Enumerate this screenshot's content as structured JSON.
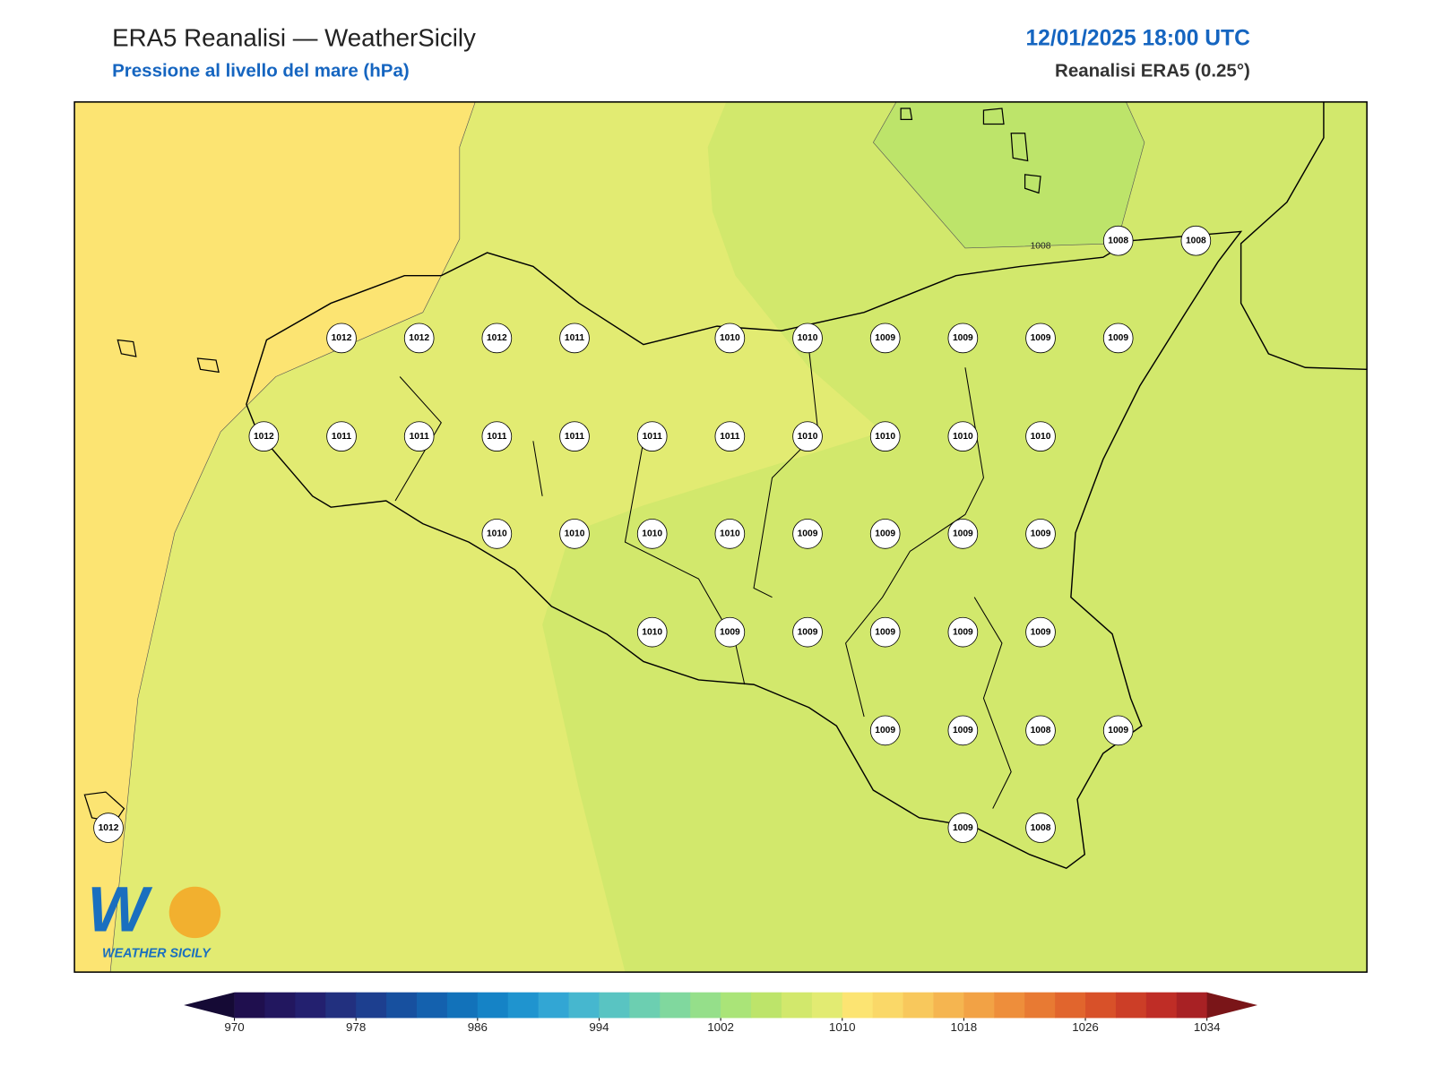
{
  "header": {
    "title": "ERA5 Reanalisi — WeatherSicily",
    "subtitle": "Pressione al livello del mare (hPa)",
    "datetime": "12/01/2025 18:00 UTC",
    "source": "Reanalisi ERA5 (0.25°)"
  },
  "map": {
    "contour_label": "1008",
    "stations": [
      [
        1008,
        1008
      ],
      [
        1012,
        1012,
        1012,
        1011,
        1010,
        1010,
        1009,
        1009,
        1009,
        1009
      ],
      [
        1012,
        1011,
        1011,
        1011,
        1011,
        1011,
        1011,
        1010,
        1010,
        1010,
        1010
      ],
      [
        1010,
        1010,
        1010,
        1010,
        1009,
        1009,
        1009,
        1009
      ],
      [
        1010,
        1009,
        1009,
        1009,
        1009,
        1009
      ],
      [
        1009,
        1009,
        1008,
        1009
      ],
      [
        1012,
        1009,
        1008
      ]
    ],
    "logo": "WEATHER SICILY"
  },
  "colorbar": {
    "ticks": [
      970,
      978,
      986,
      994,
      1002,
      1010,
      1018,
      1026,
      1034
    ]
  }
}
